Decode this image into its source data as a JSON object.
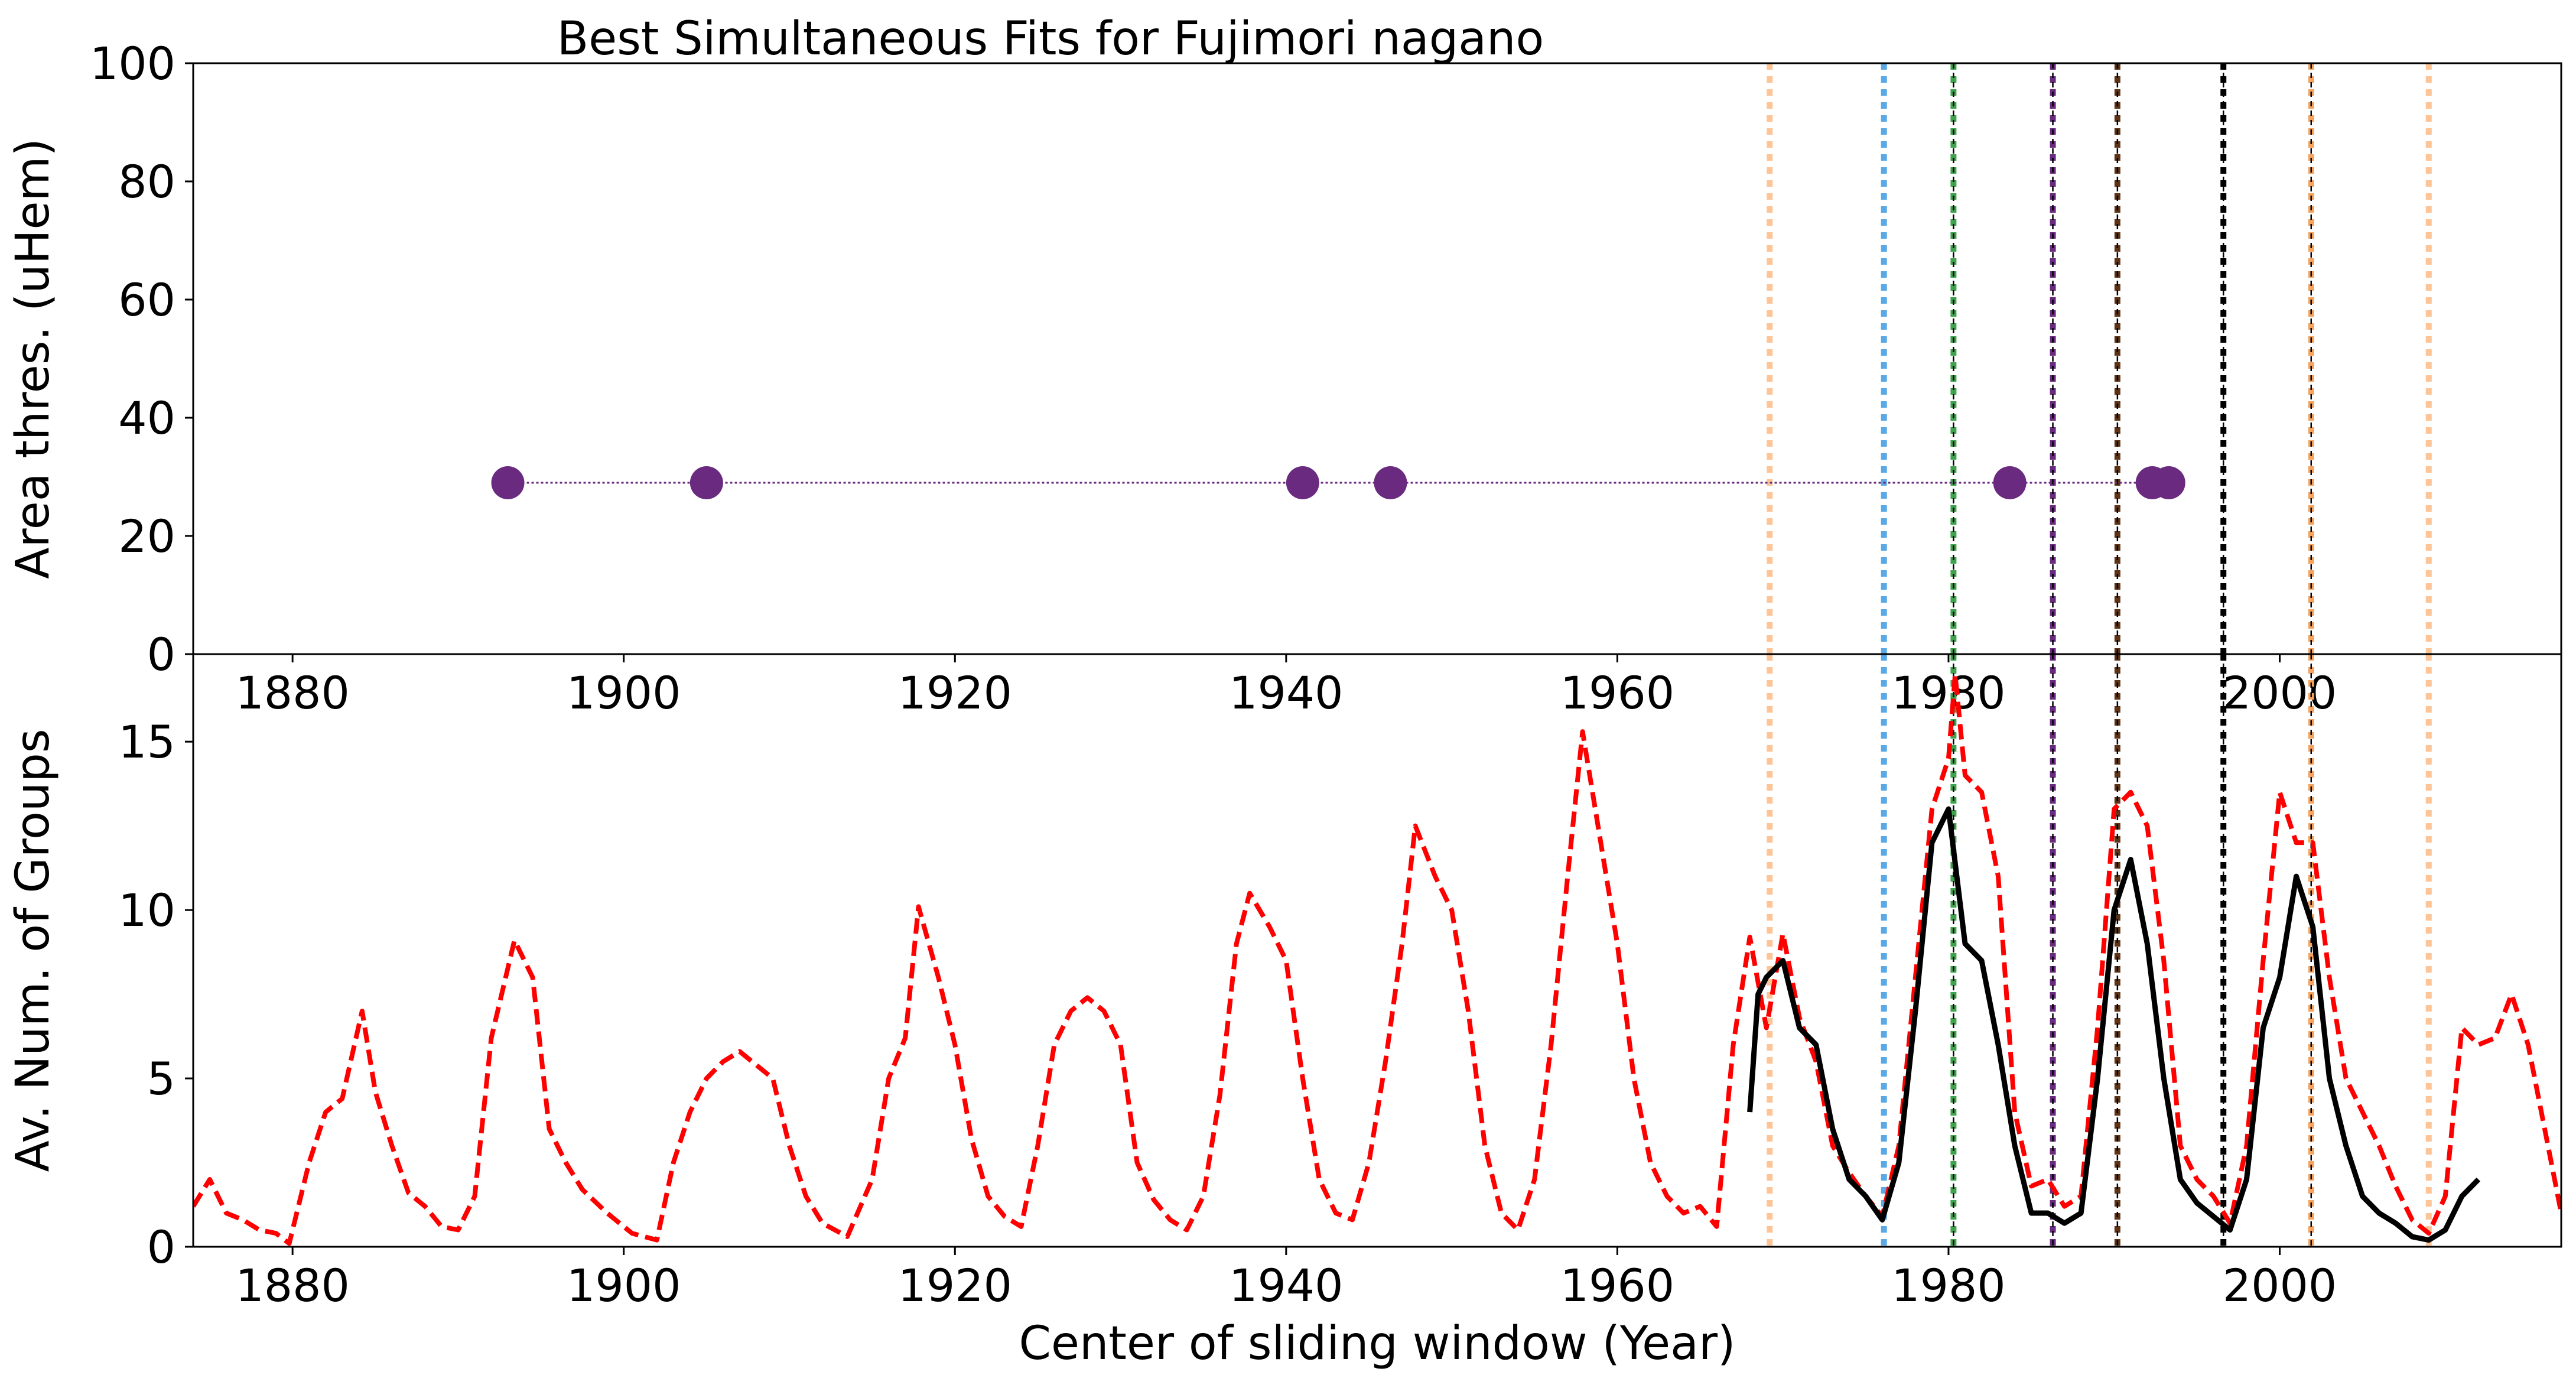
{
  "title": "Best Simultaneous Fits for Fujimori nagano",
  "chart_data": [
    {
      "type": "scatter",
      "panel": "top",
      "xlabel": "",
      "ylabel": "Area thres. (uHem)",
      "xlim": [
        1874,
        2017
      ],
      "ylim": [
        0,
        100
      ],
      "xticks": [
        "1880",
        "1900",
        "1920",
        "1940",
        "1960",
        "1980",
        "2000"
      ],
      "yticks": [
        "0",
        "20",
        "40",
        "60",
        "80",
        "100"
      ],
      "grid": false,
      "points": [
        {
          "x": 1893.0,
          "y": 29
        },
        {
          "x": 1905.0,
          "y": 29
        },
        {
          "x": 1941.0,
          "y": 29
        },
        {
          "x": 1946.3,
          "y": 29
        },
        {
          "x": 1983.7,
          "y": 29
        },
        {
          "x": 1992.3,
          "y": 29
        },
        {
          "x": 1993.3,
          "y": 29
        }
      ],
      "point_color": "#6a2a7f",
      "connector": "dotted line",
      "vlines": [
        {
          "x": 1969.2,
          "color": "#fdc597"
        },
        {
          "x": 1976.1,
          "color": "#5aa9e6"
        },
        {
          "x": 1980.3,
          "color": "#3fa34d"
        },
        {
          "x": 1986.3,
          "color": "#6a2a7f"
        },
        {
          "x": 1990.2,
          "color": "#5c3317"
        },
        {
          "x": 1996.6,
          "color": "#000000"
        },
        {
          "x": 2001.9,
          "color": "#f4a460"
        },
        {
          "x": 2009.0,
          "color": "#fdc597"
        }
      ]
    },
    {
      "type": "line",
      "panel": "bottom",
      "xlabel": "Center of sliding window (Year)",
      "ylabel": "Av. Num. of Groups",
      "xlim": [
        1874,
        2017
      ],
      "ylim": [
        0,
        17.6
      ],
      "xticks": [
        "1880",
        "1900",
        "1920",
        "1940",
        "1960",
        "1980",
        "2000"
      ],
      "yticks": [
        "0",
        "5",
        "10",
        "15"
      ],
      "grid": false,
      "series": [
        {
          "style": "dashed",
          "color": "#ff0000",
          "x": [
            1874,
            1875,
            1876,
            1877,
            1878,
            1879,
            1879.8,
            1881,
            1882,
            1883,
            1884.2,
            1885,
            1886,
            1887,
            1888,
            1889,
            1890,
            1891,
            1892,
            1893.4,
            1894.5,
            1895.5,
            1896.5,
            1897.5,
            1899,
            1900.5,
            1902,
            1903,
            1904,
            1905,
            1906,
            1907,
            1908,
            1909,
            1910,
            1911,
            1912,
            1913.5,
            1915,
            1916,
            1917,
            1917.8,
            1919,
            1920,
            1921,
            1922,
            1923,
            1924,
            1925,
            1926,
            1927,
            1928,
            1929,
            1930,
            1931,
            1932,
            1933,
            1934,
            1935,
            1936,
            1937,
            1937.8,
            1939,
            1940,
            1941,
            1942,
            1943,
            1944,
            1945,
            1946,
            1947,
            1947.8,
            1949,
            1950,
            1951,
            1952,
            1953,
            1954,
            1955,
            1956,
            1957,
            1957.9,
            1959,
            1960,
            1961,
            1962,
            1963,
            1964,
            1965,
            1966,
            1967,
            1968,
            1969,
            1970,
            1971,
            1972,
            1973,
            1974,
            1975,
            1976,
            1977,
            1978,
            1979,
            1980,
            1980.4,
            1981,
            1982,
            1983,
            1984,
            1985,
            1986,
            1987,
            1988,
            1989,
            1990,
            1991,
            1992,
            1993,
            1994,
            1995,
            1996,
            1997,
            1998,
            1999,
            2000,
            2001,
            2002,
            2003,
            2004,
            2005,
            2006,
            2007,
            2008,
            2009,
            2010,
            2011,
            2012,
            2013,
            2014,
            2015,
            2016,
            2017
          ],
          "values": [
            1.2,
            2.0,
            1.0,
            0.8,
            0.5,
            0.4,
            0.1,
            2.5,
            4.0,
            4.4,
            7.0,
            4.6,
            3.0,
            1.6,
            1.2,
            0.6,
            0.5,
            1.5,
            6.2,
            9.1,
            8.0,
            3.5,
            2.5,
            1.7,
            1.0,
            0.4,
            0.2,
            2.5,
            4.0,
            5.0,
            5.5,
            5.8,
            5.4,
            5.0,
            3.0,
            1.5,
            0.7,
            0.3,
            2.0,
            5.0,
            6.2,
            10.1,
            8.0,
            6.0,
            3.2,
            1.5,
            0.9,
            0.6,
            3.0,
            6.0,
            7.0,
            7.4,
            7.0,
            6.0,
            2.5,
            1.4,
            0.8,
            0.5,
            1.5,
            4.5,
            9.0,
            10.5,
            9.5,
            8.5,
            5.0,
            2.0,
            1.0,
            0.8,
            2.5,
            5.5,
            9.0,
            12.5,
            11.0,
            10.0,
            7.0,
            3.0,
            1.0,
            0.5,
            2.0,
            6.0,
            11.0,
            15.3,
            12.0,
            9.0,
            5.0,
            2.5,
            1.5,
            1.0,
            1.2,
            0.6,
            6.0,
            9.2,
            6.5,
            9.3,
            6.8,
            5.5,
            3.0,
            2.2,
            1.5,
            0.9,
            3.0,
            8.0,
            13.0,
            14.5,
            17.0,
            14.0,
            13.5,
            11.0,
            4.0,
            1.8,
            2.0,
            1.2,
            1.5,
            6.5,
            13.0,
            13.5,
            12.5,
            8.5,
            3.0,
            2.0,
            1.5,
            0.7,
            3.0,
            8.5,
            13.5,
            12.0,
            12.0,
            8.0,
            5.0,
            4.0,
            3.0,
            1.8,
            0.8,
            0.4,
            1.5,
            6.5,
            6.0,
            6.2,
            7.5,
            6.0,
            3.5,
            1.0
          ]
        },
        {
          "style": "solid",
          "color": "#000000",
          "x": [
            1968,
            1968.5,
            1969,
            1970,
            1971,
            1972,
            1973,
            1974,
            1975,
            1976,
            1977,
            1978,
            1979,
            1980,
            1980.5,
            1981,
            1982,
            1983,
            1984,
            1985,
            1986,
            1987,
            1988,
            1989,
            1990,
            1991,
            1992,
            1993,
            1994,
            1995,
            1996,
            1997,
            1998,
            1999,
            2000,
            2001,
            2002,
            2003,
            2004,
            2005,
            2006,
            2007,
            2008,
            2009,
            2010,
            2011,
            2012
          ],
          "values": [
            4.0,
            7.5,
            8.0,
            8.5,
            6.5,
            6.0,
            3.5,
            2.0,
            1.5,
            0.8,
            2.5,
            7.0,
            12.0,
            13.0,
            11.0,
            9.0,
            8.5,
            6.0,
            3.0,
            1.0,
            1.0,
            0.7,
            1.0,
            5.0,
            10.0,
            11.5,
            9.0,
            5.0,
            2.0,
            1.3,
            0.9,
            0.5,
            2.0,
            6.5,
            8.0,
            11.0,
            9.5,
            5.0,
            3.0,
            1.5,
            1.0,
            0.7,
            0.3,
            0.2,
            0.5,
            1.5,
            2.0
          ]
        }
      ],
      "vlines": [
        {
          "x": 1969.2,
          "color": "#fdc597"
        },
        {
          "x": 1976.1,
          "color": "#5aa9e6"
        },
        {
          "x": 1980.3,
          "color": "#3fa34d"
        },
        {
          "x": 1986.3,
          "color": "#6a2a7f"
        },
        {
          "x": 1990.2,
          "color": "#5c3317"
        },
        {
          "x": 1996.6,
          "color": "#000000"
        },
        {
          "x": 2001.9,
          "color": "#f4a460"
        },
        {
          "x": 2009.0,
          "color": "#fdc597"
        }
      ]
    }
  ]
}
